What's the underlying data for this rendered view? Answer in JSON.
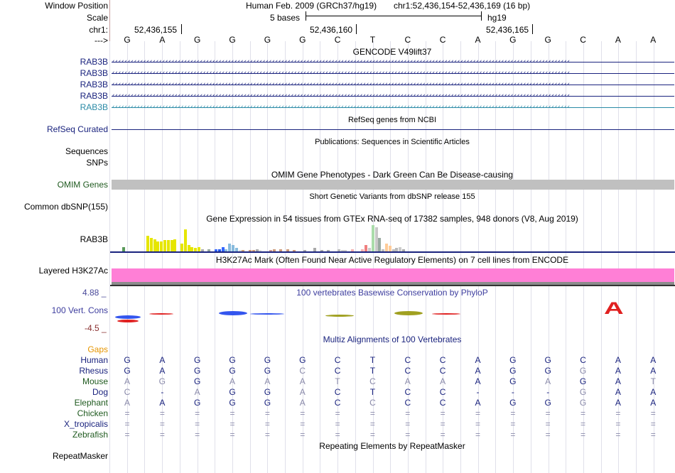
{
  "header": {
    "window_position_label": "Window Position",
    "scale_label": "Scale",
    "chrom_label": "chr1:",
    "strand_label": "--->",
    "assembly_text": "Human Feb. 2009 (GRCh37/hg19)",
    "position_text": "chr1:52,436,154-52,436,169 (16 bp)",
    "scale_text": "5 bases",
    "scale_db": "hg19",
    "coords": [
      "52,436,155",
      "52,436,160",
      "52,436,165"
    ]
  },
  "sequence": [
    "G",
    "A",
    "G",
    "G",
    "G",
    "G",
    "C",
    "T",
    "C",
    "C",
    "A",
    "G",
    "G",
    "C",
    "A",
    "A"
  ],
  "tracks": {
    "gencode": {
      "title": "GENCODE V49lift37",
      "genes": [
        "RAB3B",
        "RAB3B",
        "RAB3B",
        "RAB3B",
        "RAB3B"
      ],
      "arrow_text": "‹‹‹‹‹‹‹‹‹‹‹‹‹‹‹‹‹‹‹‹‹‹‹‹‹‹‹‹‹‹‹‹‹‹‹‹‹‹‹‹‹‹‹‹‹‹‹‹‹‹‹‹‹‹‹‹‹‹‹‹‹‹‹‹‹‹‹‹‹‹‹‹‹‹‹‹‹‹‹‹‹‹‹‹‹‹‹‹‹‹‹‹‹‹‹‹‹‹‹‹‹‹‹‹‹‹‹‹‹‹‹‹‹‹‹‹‹‹‹‹‹‹‹‹‹‹‹‹‹‹‹‹‹‹‹‹‹‹‹‹‹‹‹‹‹‹",
      "colors": [
        "#1a237e",
        "#1a237e",
        "#1a237e",
        "#1a237e",
        "#2a8aa6"
      ]
    },
    "refseq": {
      "title": "RefSeq genes from NCBI",
      "label": "RefSeq Curated"
    },
    "publications": {
      "title": "Publications: Sequences in Scientific Articles",
      "label": "Sequences"
    },
    "snps_label": "SNPs",
    "omim": {
      "title": "OMIM Gene Phenotypes - Dark Green Can Be Disease-causing",
      "label": "OMIM Genes",
      "title_color": "#1f5a1f"
    },
    "dbsnp": {
      "title": "Short Genetic Variants from dbSNP release 155",
      "label": "Common dbSNP(155)"
    },
    "gtex": {
      "title": "Gene Expression in 54 tissues from GTEx RNA-seq of 17382 samples, 948 donors (V8, Aug 2019)",
      "label": "RAB3B",
      "values": [
        0,
        0,
        0,
        0.2,
        0,
        0,
        0,
        0,
        0,
        0,
        0.7,
        0.6,
        0.55,
        0.45,
        0.45,
        0.5,
        0.5,
        0.5,
        0.55,
        0,
        0.35,
        1.0,
        0.3,
        0.2,
        0.15,
        0.2,
        0.1,
        0,
        0.1,
        0,
        0.1,
        0.1,
        0.2,
        0.1,
        0.35,
        0.3,
        0.15,
        0.05,
        0.05,
        0,
        0.05,
        0.05,
        0.1,
        0.05,
        0,
        0,
        0.05,
        0.1,
        0,
        0.1,
        0,
        0.1,
        0,
        0.05,
        0,
        0,
        0.05,
        0,
        0,
        0.15,
        0,
        0.05,
        0,
        0.05,
        0,
        0,
        0.1,
        0.05,
        0.05,
        0,
        0.1,
        0,
        0,
        0.1,
        0.3,
        0.15,
        1.2,
        1.1,
        0.6,
        0.1,
        0.35,
        0.25,
        0.1,
        0.15,
        0.2,
        0.1
      ],
      "colors": [
        "#4a8a4a",
        "#888",
        "#ddd",
        "#5a9a5a",
        "#ddd",
        "#ddd",
        "#ddd",
        "#ddd",
        "#ddd",
        "#ddd",
        "#e6e600",
        "#e6e600",
        "#e6e600",
        "#e6e600",
        "#e6e600",
        "#e6e600",
        "#e6e600",
        "#e6e600",
        "#e6e600",
        "#e6e600",
        "#e6e600",
        "#e6e600",
        "#e6e600",
        "#e6e600",
        "#e6e600",
        "#e6e600",
        "#aaa",
        "#ddd",
        "#99aaa0",
        "#ddd",
        "#3366ff",
        "#2255ee",
        "#3366ff",
        "#88bbdd",
        "#88bbdd",
        "#88bbdd",
        "#88bbdd",
        "#ddd",
        "#c9a27a",
        "#ddd",
        "#cc9977",
        "#cc9977",
        "#aaaaaa",
        "#ddd",
        "#ddd",
        "#ddd",
        "#cc9999",
        "#cc9977",
        "#ddd",
        "#cc9977",
        "#ddd",
        "#cc9977",
        "#ddd",
        "#cc9977",
        "#ddd",
        "#ddd",
        "#aaa",
        "#ddd",
        "#ddd",
        "#aaa",
        "#ddd",
        "#aaa",
        "#ddd",
        "#aaa",
        "#ddd",
        "#ddd",
        "#bbb",
        "#ccc",
        "#ccc",
        "#ddd",
        "#f4b0b0",
        "#ddd",
        "#ddd",
        "#f4b0b0",
        "#f08080",
        "#ccc",
        "#aaddaa",
        "#c8c8c8",
        "#99aaa0",
        "#bbb",
        "#ffcc99",
        "#ffcc99",
        "#bbb",
        "#bbb",
        "#ccc",
        "#aaa"
      ]
    },
    "h3k27ac": {
      "title": "H3K27Ac Mark (Often Found Near Active Regulatory Elements) on 7 cell lines from ENCODE",
      "label": "Layered H3K27Ac"
    },
    "cons": {
      "title": "100 vertebrates Basewise Conservation by PhyloP",
      "label": "100 Vert. Cons",
      "max_label": "4.88 _",
      "min_label": "-4.5 _",
      "alt_base": "A"
    },
    "multiz": {
      "title": "Multiz Alignments of 100 Vertebrates",
      "gaps_label": "Gaps",
      "species": [
        {
          "name": "Human",
          "color": "#1a237e",
          "bases": [
            "G",
            "A",
            "G",
            "G",
            "G",
            "G",
            "C",
            "T",
            "C",
            "C",
            "A",
            "G",
            "G",
            "C",
            "A",
            "A"
          ]
        },
        {
          "name": "Rhesus",
          "color": "#1a237e",
          "bases": [
            "G",
            "A",
            "G",
            "G",
            "G",
            "C",
            "C",
            "T",
            "C",
            "C",
            "A",
            "G",
            "G",
            "G",
            "A",
            "A"
          ]
        },
        {
          "name": "Mouse",
          "color": "#1f5a1f",
          "bases": [
            "A",
            "G",
            "G",
            "A",
            "A",
            "A",
            "T",
            "C",
            "A",
            "A",
            "A",
            "G",
            "A",
            "G",
            "A",
            "T"
          ]
        },
        {
          "name": "Dog",
          "color": "#1a237e",
          "bases": [
            "C",
            "-",
            "A",
            "G",
            "G",
            "A",
            "C",
            "T",
            "C",
            "C",
            "-",
            "-",
            "-",
            "G",
            "A",
            "A"
          ]
        },
        {
          "name": "Elephant",
          "color": "#1f5a1f",
          "bases": [
            "A",
            "A",
            "G",
            "G",
            "G",
            "A",
            "C",
            "C",
            "C",
            "C",
            "A",
            "G",
            "G",
            "G",
            "A",
            "A"
          ]
        },
        {
          "name": "Chicken",
          "color": "#1f5a1f",
          "bases": [
            "=",
            "=",
            "=",
            "=",
            "=",
            "=",
            "=",
            "=",
            "=",
            "=",
            "=",
            "=",
            "=",
            "=",
            "=",
            "="
          ]
        },
        {
          "name": "X_tropicalis",
          "color": "#1a237e",
          "bases": [
            "=",
            "=",
            "=",
            "=",
            "=",
            "=",
            "=",
            "=",
            "=",
            "=",
            "=",
            "=",
            "=",
            "=",
            "=",
            "="
          ]
        },
        {
          "name": "Zebrafish",
          "color": "#1f5a1f",
          "bases": [
            "=",
            "=",
            "=",
            "=",
            "=",
            "=",
            "=",
            "=",
            "=",
            "=",
            "=",
            "=",
            "=",
            "=",
            "=",
            "="
          ]
        }
      ],
      "faded": [
        [
          false,
          false,
          false,
          false,
          false,
          false,
          false,
          false,
          false,
          false,
          false,
          false,
          false,
          false,
          false,
          false
        ],
        [
          false,
          false,
          false,
          false,
          false,
          true,
          false,
          false,
          false,
          false,
          false,
          false,
          false,
          true,
          false,
          false
        ],
        [
          true,
          true,
          false,
          true,
          true,
          true,
          true,
          true,
          true,
          true,
          false,
          false,
          true,
          false,
          false,
          true
        ],
        [
          true,
          false,
          true,
          false,
          false,
          true,
          false,
          false,
          false,
          false,
          false,
          false,
          false,
          true,
          false,
          false
        ],
        [
          true,
          false,
          false,
          false,
          false,
          true,
          false,
          true,
          false,
          false,
          false,
          false,
          false,
          true,
          false,
          false
        ],
        [
          true,
          true,
          true,
          true,
          true,
          true,
          true,
          true,
          true,
          true,
          true,
          true,
          true,
          true,
          true,
          true
        ],
        [
          true,
          true,
          true,
          true,
          true,
          true,
          true,
          true,
          true,
          true,
          true,
          true,
          true,
          true,
          true,
          true
        ],
        [
          true,
          true,
          true,
          true,
          true,
          true,
          true,
          true,
          true,
          true,
          true,
          true,
          true,
          true,
          true,
          true
        ]
      ]
    },
    "repeatmasker": {
      "title": "Repeating Elements by RepeatMasker",
      "label": "RepeatMasker"
    }
  }
}
